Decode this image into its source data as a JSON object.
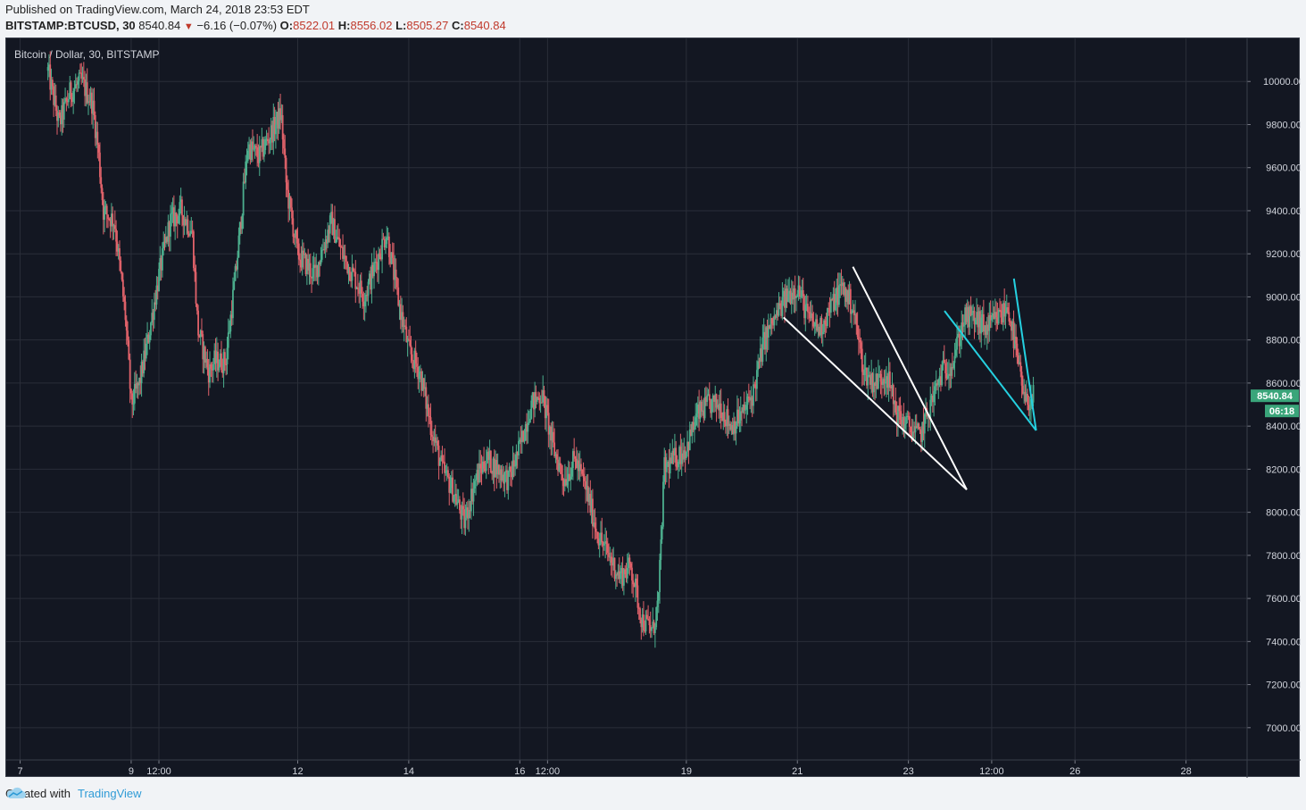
{
  "header": {
    "published": "Published on TradingView.com, March 24, 2018 23:53 EDT",
    "symbol": "BITSTAMP:BTCUSD, 30",
    "last": "8540.84",
    "change_arrow": "▼",
    "change": "−6.16 (−0.07%)",
    "o_label": "O:",
    "o_value": "8522.01",
    "h_label": "H:",
    "h_value": "8556.02",
    "l_label": "L:",
    "l_value": "8505.27",
    "c_label": "C:",
    "c_value": "8540.84"
  },
  "chart_title": "Bitcoin / Dollar, 30, BITSTAMP",
  "price_badge": "8540.84",
  "countdown_badge": "06:18",
  "footer": {
    "created_with": "Created with",
    "brand": "TradingView"
  },
  "colors": {
    "background": "#131722",
    "up": "#4caf8e",
    "down": "#e0626a",
    "grid": "#2a2e39",
    "badge": "#3aa57a",
    "trendline_white": "#ffffff",
    "trendline_cyan": "#25d0e0"
  },
  "chart_data": {
    "type": "candlestick",
    "title": "Bitcoin / Dollar, 30, BITSTAMP",
    "ylim": [
      6850,
      10200
    ],
    "y_ticks": [
      "10000.00",
      "9800.00",
      "9600.00",
      "9400.00",
      "9200.00",
      "9000.00",
      "8800.00",
      "8600.00",
      "8400.00",
      "8200.00",
      "8000.00",
      "7800.00",
      "7600.00",
      "7400.00",
      "7200.00",
      "7000.00"
    ],
    "x_ticks": [
      "7",
      "9",
      "12:00",
      "12",
      "14",
      "16",
      "12:00",
      "19",
      "21",
      "23",
      "12:00",
      "26",
      "28"
    ],
    "x_tick_days": [
      7,
      9,
      9.5,
      12,
      14,
      16,
      16.5,
      19,
      21,
      23,
      24.5,
      26,
      28
    ],
    "xlim": [
      6.75,
      29.1
    ],
    "last_price": 8540.84,
    "price_path": [
      [
        7.5,
        10050
      ],
      [
        7.7,
        9800
      ],
      [
        7.9,
        9950
      ],
      [
        8.1,
        10000
      ],
      [
        8.3,
        9900
      ],
      [
        8.4,
        9700
      ],
      [
        8.5,
        9400
      ],
      [
        8.7,
        9350
      ],
      [
        8.9,
        8900
      ],
      [
        9.0,
        8500
      ],
      [
        9.15,
        8600
      ],
      [
        9.3,
        8800
      ],
      [
        9.5,
        9100
      ],
      [
        9.7,
        9350
      ],
      [
        9.9,
        9400
      ],
      [
        10.1,
        9300
      ],
      [
        10.2,
        8850
      ],
      [
        10.4,
        8650
      ],
      [
        10.5,
        8700
      ],
      [
        10.7,
        8700
      ],
      [
        10.9,
        9150
      ],
      [
        11.1,
        9700
      ],
      [
        11.3,
        9650
      ],
      [
        11.5,
        9750
      ],
      [
        11.7,
        9850
      ],
      [
        11.8,
        9500
      ],
      [
        12.0,
        9200
      ],
      [
        12.3,
        9100
      ],
      [
        12.6,
        9350
      ],
      [
        12.8,
        9200
      ],
      [
        13.0,
        9100
      ],
      [
        13.2,
        9000
      ],
      [
        13.4,
        9150
      ],
      [
        13.6,
        9300
      ],
      [
        13.8,
        9000
      ],
      [
        14.0,
        8750
      ],
      [
        14.2,
        8650
      ],
      [
        14.4,
        8400
      ],
      [
        14.6,
        8200
      ],
      [
        14.8,
        8100
      ],
      [
        15.0,
        7950
      ],
      [
        15.2,
        8150
      ],
      [
        15.4,
        8250
      ],
      [
        15.6,
        8200
      ],
      [
        15.8,
        8150
      ],
      [
        16.0,
        8300
      ],
      [
        16.2,
        8500
      ],
      [
        16.4,
        8550
      ],
      [
        16.6,
        8300
      ],
      [
        16.8,
        8150
      ],
      [
        17.0,
        8250
      ],
      [
        17.2,
        8100
      ],
      [
        17.4,
        7900
      ],
      [
        17.6,
        7800
      ],
      [
        17.8,
        7700
      ],
      [
        18.0,
        7750
      ],
      [
        18.2,
        7500
      ],
      [
        18.4,
        7450
      ],
      [
        18.5,
        7600
      ],
      [
        18.6,
        8200
      ],
      [
        18.8,
        8250
      ],
      [
        19.0,
        8300
      ],
      [
        19.2,
        8450
      ],
      [
        19.4,
        8500
      ],
      [
        19.6,
        8500
      ],
      [
        19.8,
        8400
      ],
      [
        20.0,
        8450
      ],
      [
        20.2,
        8550
      ],
      [
        20.4,
        8800
      ],
      [
        20.6,
        8900
      ],
      [
        20.8,
        9000
      ],
      [
        21.0,
        9050
      ],
      [
        21.2,
        8900
      ],
      [
        21.4,
        8850
      ],
      [
        21.6,
        8950
      ],
      [
        21.8,
        9050
      ],
      [
        22.0,
        8950
      ],
      [
        22.2,
        8650
      ],
      [
        22.4,
        8600
      ],
      [
        22.6,
        8650
      ],
      [
        22.8,
        8450
      ],
      [
        23.0,
        8400
      ],
      [
        23.2,
        8350
      ],
      [
        23.4,
        8500
      ],
      [
        23.6,
        8650
      ],
      [
        23.8,
        8700
      ],
      [
        24.0,
        8900
      ],
      [
        24.2,
        8900
      ],
      [
        24.4,
        8850
      ],
      [
        24.6,
        8900
      ],
      [
        24.8,
        8950
      ],
      [
        25.0,
        8650
      ],
      [
        25.1,
        8500
      ],
      [
        25.25,
        8540
      ]
    ],
    "trendlines": [
      {
        "color": "white",
        "points": [
          [
            20.75,
            8905
          ],
          [
            24.05,
            8105
          ]
        ]
      },
      {
        "color": "white",
        "points": [
          [
            22.0,
            9140
          ],
          [
            24.05,
            8105
          ]
        ]
      },
      {
        "color": "cyan",
        "points": [
          [
            23.65,
            8935
          ],
          [
            25.3,
            8380
          ]
        ]
      },
      {
        "color": "cyan",
        "points": [
          [
            24.9,
            9085
          ],
          [
            25.3,
            8380
          ]
        ]
      }
    ]
  }
}
